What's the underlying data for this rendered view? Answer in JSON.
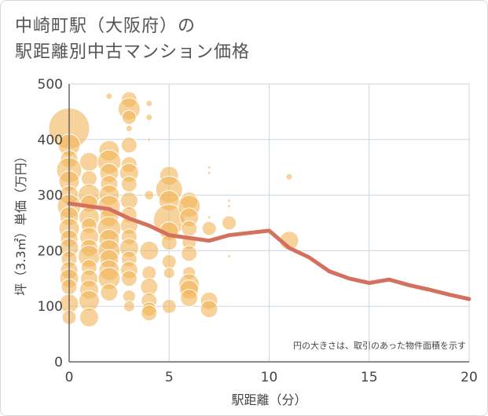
{
  "title": {
    "line1": "中崎町駅（大阪府）の",
    "line2": "駅距離別中古マンション価格"
  },
  "colors": {
    "bubble": "#f2b456",
    "bubble_stroke": "#ffffff",
    "line": "#d4705e",
    "grid": "#c8d6e2",
    "axis": "#666666"
  },
  "chart_data": {
    "type": "scatter",
    "xlabel": "駅距離（分）",
    "ylabel": "坪（3.3㎡）単価（万円）",
    "xlim": [
      0,
      20
    ],
    "ylim": [
      0,
      500
    ],
    "xticks": [
      "0",
      "5",
      "10",
      "15",
      "20"
    ],
    "yticks": [
      "0",
      "100",
      "200",
      "300",
      "400",
      "500"
    ],
    "note": "円の大きさは、取引のあった物件面積を示す",
    "bubbles": [
      {
        "x": 0,
        "y": 420,
        "s": 26
      },
      {
        "x": 0,
        "y": 390,
        "s": 14
      },
      {
        "x": 0,
        "y": 365,
        "s": 11
      },
      {
        "x": 0,
        "y": 345,
        "s": 16
      },
      {
        "x": 0,
        "y": 325,
        "s": 13
      },
      {
        "x": 0,
        "y": 300,
        "s": 12
      },
      {
        "x": 0,
        "y": 280,
        "s": 15
      },
      {
        "x": 0,
        "y": 262,
        "s": 12
      },
      {
        "x": 0,
        "y": 240,
        "s": 13
      },
      {
        "x": 0,
        "y": 222,
        "s": 11
      },
      {
        "x": 0,
        "y": 205,
        "s": 12
      },
      {
        "x": 0,
        "y": 185,
        "s": 10
      },
      {
        "x": 0,
        "y": 165,
        "s": 11
      },
      {
        "x": 0,
        "y": 150,
        "s": 12
      },
      {
        "x": 0,
        "y": 135,
        "s": 10
      },
      {
        "x": 0,
        "y": 105,
        "s": 12
      },
      {
        "x": 0,
        "y": 80,
        "s": 9
      },
      {
        "x": 1,
        "y": 360,
        "s": 12
      },
      {
        "x": 1,
        "y": 330,
        "s": 10
      },
      {
        "x": 1,
        "y": 300,
        "s": 14
      },
      {
        "x": 1,
        "y": 285,
        "s": 11
      },
      {
        "x": 1,
        "y": 260,
        "s": 13
      },
      {
        "x": 1,
        "y": 245,
        "s": 10
      },
      {
        "x": 1,
        "y": 225,
        "s": 12
      },
      {
        "x": 1,
        "y": 205,
        "s": 11
      },
      {
        "x": 1,
        "y": 190,
        "s": 14
      },
      {
        "x": 1,
        "y": 170,
        "s": 10
      },
      {
        "x": 1,
        "y": 150,
        "s": 11
      },
      {
        "x": 1,
        "y": 130,
        "s": 12
      },
      {
        "x": 1,
        "y": 110,
        "s": 13
      },
      {
        "x": 1,
        "y": 80,
        "s": 12
      },
      {
        "x": 2,
        "y": 478,
        "s": 4
      },
      {
        "x": 2,
        "y": 380,
        "s": 13
      },
      {
        "x": 2,
        "y": 360,
        "s": 15
      },
      {
        "x": 2,
        "y": 340,
        "s": 12
      },
      {
        "x": 2,
        "y": 320,
        "s": 11
      },
      {
        "x": 2,
        "y": 300,
        "s": 13
      },
      {
        "x": 2,
        "y": 280,
        "s": 14
      },
      {
        "x": 2,
        "y": 260,
        "s": 12
      },
      {
        "x": 2,
        "y": 240,
        "s": 15
      },
      {
        "x": 2,
        "y": 220,
        "s": 13
      },
      {
        "x": 2,
        "y": 200,
        "s": 14
      },
      {
        "x": 2,
        "y": 185,
        "s": 12
      },
      {
        "x": 2,
        "y": 165,
        "s": 13
      },
      {
        "x": 2,
        "y": 150,
        "s": 14
      },
      {
        "x": 2,
        "y": 125,
        "s": 11
      },
      {
        "x": 3,
        "y": 472,
        "s": 10
      },
      {
        "x": 3,
        "y": 455,
        "s": 14
      },
      {
        "x": 3,
        "y": 440,
        "s": 9
      },
      {
        "x": 3,
        "y": 420,
        "s": 4
      },
      {
        "x": 3,
        "y": 390,
        "s": 10
      },
      {
        "x": 3,
        "y": 355,
        "s": 10
      },
      {
        "x": 3,
        "y": 340,
        "s": 12
      },
      {
        "x": 3,
        "y": 320,
        "s": 10
      },
      {
        "x": 3,
        "y": 290,
        "s": 11
      },
      {
        "x": 3,
        "y": 265,
        "s": 10
      },
      {
        "x": 3,
        "y": 245,
        "s": 11
      },
      {
        "x": 3,
        "y": 225,
        "s": 10
      },
      {
        "x": 3,
        "y": 205,
        "s": 12
      },
      {
        "x": 3,
        "y": 185,
        "s": 10
      },
      {
        "x": 3,
        "y": 165,
        "s": 11
      },
      {
        "x": 3,
        "y": 150,
        "s": 10
      },
      {
        "x": 3,
        "y": 118,
        "s": 8
      },
      {
        "x": 3,
        "y": 100,
        "s": 7
      },
      {
        "x": 4,
        "y": 465,
        "s": 4
      },
      {
        "x": 4,
        "y": 440,
        "s": 4
      },
      {
        "x": 4,
        "y": 400,
        "s": 2
      },
      {
        "x": 4,
        "y": 300,
        "s": 6
      },
      {
        "x": 4,
        "y": 200,
        "s": 12
      },
      {
        "x": 4,
        "y": 160,
        "s": 9
      },
      {
        "x": 4,
        "y": 135,
        "s": 11
      },
      {
        "x": 4,
        "y": 110,
        "s": 10
      },
      {
        "x": 4,
        "y": 95,
        "s": 9
      },
      {
        "x": 4,
        "y": 88,
        "s": 10
      },
      {
        "x": 5,
        "y": 335,
        "s": 12
      },
      {
        "x": 5,
        "y": 310,
        "s": 17
      },
      {
        "x": 5,
        "y": 290,
        "s": 13
      },
      {
        "x": 5,
        "y": 255,
        "s": 20
      },
      {
        "x": 5,
        "y": 235,
        "s": 12
      },
      {
        "x": 5,
        "y": 215,
        "s": 10
      },
      {
        "x": 5,
        "y": 180,
        "s": 9
      },
      {
        "x": 5,
        "y": 160,
        "s": 7
      },
      {
        "x": 5,
        "y": 100,
        "s": 9
      },
      {
        "x": 6,
        "y": 290,
        "s": 11
      },
      {
        "x": 6,
        "y": 280,
        "s": 14
      },
      {
        "x": 6,
        "y": 260,
        "s": 12
      },
      {
        "x": 6,
        "y": 240,
        "s": 10
      },
      {
        "x": 6,
        "y": 215,
        "s": 9
      },
      {
        "x": 6,
        "y": 195,
        "s": 10
      },
      {
        "x": 6,
        "y": 160,
        "s": 8
      },
      {
        "x": 6,
        "y": 140,
        "s": 13
      },
      {
        "x": 6,
        "y": 130,
        "s": 12
      },
      {
        "x": 6,
        "y": 115,
        "s": 11
      },
      {
        "x": 7,
        "y": 350,
        "s": 2
      },
      {
        "x": 7,
        "y": 340,
        "s": 2
      },
      {
        "x": 7,
        "y": 260,
        "s": 2
      },
      {
        "x": 7,
        "y": 240,
        "s": 9
      },
      {
        "x": 7,
        "y": 110,
        "s": 11
      },
      {
        "x": 7,
        "y": 95,
        "s": 11
      },
      {
        "x": 8,
        "y": 290,
        "s": 2
      },
      {
        "x": 8,
        "y": 280,
        "s": 2
      },
      {
        "x": 8,
        "y": 250,
        "s": 9
      },
      {
        "x": 8,
        "y": 190,
        "s": 2
      },
      {
        "x": 11,
        "y": 333,
        "s": 4
      },
      {
        "x": 11,
        "y": 218,
        "s": 12
      }
    ],
    "series": [
      {
        "x": [
          0,
          1,
          2,
          3,
          4,
          5,
          6,
          7,
          8,
          9,
          10,
          11,
          12,
          13,
          14,
          15,
          16,
          17,
          18,
          19,
          20
        ],
        "values": [
          285,
          280,
          275,
          258,
          245,
          228,
          223,
          218,
          228,
          232,
          236,
          205,
          188,
          163,
          150,
          142,
          148,
          138,
          130,
          121,
          113
        ]
      }
    ]
  }
}
